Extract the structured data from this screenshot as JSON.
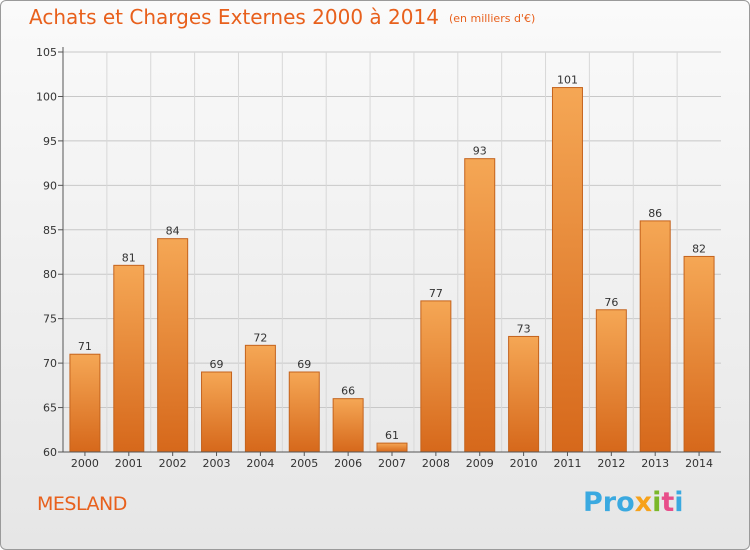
{
  "header": {
    "title": "Achats et Charges Externes 2000 à 2014",
    "unit": "(en milliers d'€)"
  },
  "footer": {
    "city": "MESLAND",
    "brand_parts": [
      "Pro",
      "x",
      "i",
      "t",
      "i"
    ]
  },
  "colors": {
    "title": "#e8601c",
    "bar_top": "#f5a755",
    "bar_bottom": "#d6681b",
    "grid": "#c8c8c8"
  },
  "chart_data": {
    "type": "bar",
    "title": "Achats et Charges Externes 2000 à 2014",
    "subtitle": "(en milliers d'€)",
    "categories": [
      "2000",
      "2001",
      "2002",
      "2003",
      "2004",
      "2005",
      "2006",
      "2007",
      "2008",
      "2009",
      "2010",
      "2011",
      "2012",
      "2013",
      "2014"
    ],
    "values": [
      71,
      81,
      84,
      69,
      72,
      69,
      66,
      61,
      77,
      93,
      73,
      101,
      76,
      86,
      82
    ],
    "ylim": [
      60,
      105
    ],
    "yticks": [
      60,
      65,
      70,
      75,
      80,
      85,
      90,
      95,
      100,
      105
    ],
    "grid": true,
    "xlabel": "",
    "ylabel": ""
  }
}
